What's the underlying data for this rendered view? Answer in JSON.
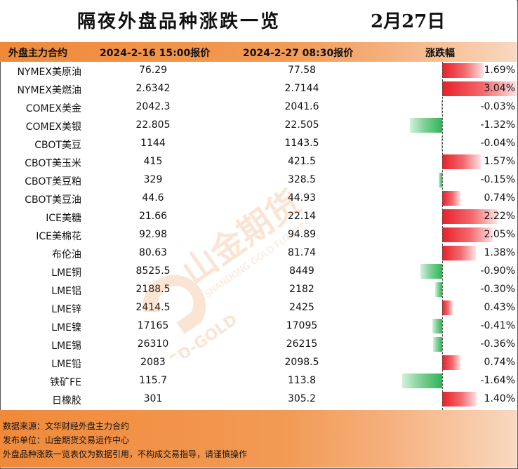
{
  "title": "隔夜外盘品种涨跌一览",
  "date": "2月27日",
  "headers": {
    "col1": "外盘主力合约",
    "col2": "2024-2-16 15:00报价",
    "col3": "2024-2-27 08:30报价",
    "col4": "涨跌幅"
  },
  "chart_data": {
    "type": "table",
    "columns": [
      "外盘主力合约",
      "2024-2-16 15:00报价",
      "2024-2-27 08:30报价",
      "涨跌幅"
    ],
    "rows": [
      {
        "name": "NYMEX美原油",
        "v1": "76.29",
        "v2": "77.58",
        "pct_text": "1.69%",
        "pct": 1.69
      },
      {
        "name": "NYMEX美燃油",
        "v1": "2.6342",
        "v2": "2.7144",
        "pct_text": "3.04%",
        "pct": 3.04
      },
      {
        "name": "COMEX美金",
        "v1": "2042.3",
        "v2": "2041.6",
        "pct_text": "-0.03%",
        "pct": -0.03
      },
      {
        "name": "COMEX美银",
        "v1": "22.805",
        "v2": "22.505",
        "pct_text": "-1.32%",
        "pct": -1.32
      },
      {
        "name": "CBOT美豆",
        "v1": "1144",
        "v2": "1143.5",
        "pct_text": "-0.04%",
        "pct": -0.04
      },
      {
        "name": "CBOT美玉米",
        "v1": "415",
        "v2": "421.5",
        "pct_text": "1.57%",
        "pct": 1.57
      },
      {
        "name": "CBOT美豆粕",
        "v1": "329",
        "v2": "328.5",
        "pct_text": "-0.15%",
        "pct": -0.15
      },
      {
        "name": "CBOT美豆油",
        "v1": "44.6",
        "v2": "44.93",
        "pct_text": "0.74%",
        "pct": 0.74
      },
      {
        "name": "ICE美糖",
        "v1": "21.66",
        "v2": "22.14",
        "pct_text": "2.22%",
        "pct": 2.22
      },
      {
        "name": "ICE美棉花",
        "v1": "92.98",
        "v2": "94.89",
        "pct_text": "2.05%",
        "pct": 2.05
      },
      {
        "name": "布伦油",
        "v1": "80.63",
        "v2": "81.74",
        "pct_text": "1.38%",
        "pct": 1.38
      },
      {
        "name": "LME铜",
        "v1": "8525.5",
        "v2": "8449",
        "pct_text": "-0.90%",
        "pct": -0.9
      },
      {
        "name": "LME铝",
        "v1": "2188.5",
        "v2": "2182",
        "pct_text": "-0.30%",
        "pct": -0.3
      },
      {
        "name": "LME锌",
        "v1": "2414.5",
        "v2": "2425",
        "pct_text": "0.43%",
        "pct": 0.43
      },
      {
        "name": "LME镍",
        "v1": "17165",
        "v2": "17095",
        "pct_text": "-0.41%",
        "pct": -0.41
      },
      {
        "name": "LME锡",
        "v1": "26310",
        "v2": "26215",
        "pct_text": "-0.36%",
        "pct": -0.36
      },
      {
        "name": "LME铅",
        "v1": "2083",
        "v2": "2098.5",
        "pct_text": "0.74%",
        "pct": 0.74
      },
      {
        "name": "铁矿FE",
        "v1": "115.7",
        "v2": "113.8",
        "pct_text": "-1.64%",
        "pct": -1.64
      },
      {
        "name": "日橡胶",
        "v1": "301",
        "v2": "305.2",
        "pct_text": "1.40%",
        "pct": 1.4
      }
    ],
    "colors": {
      "positive": "#e8202a",
      "negative": "#2fb457"
    }
  },
  "footer": {
    "line1": "数据来源：文华财经外盘主力合约",
    "line2": "发布单位：山金期货交易运作中心",
    "line3": "外盘品种涨跌一览表仅为数据引用，不构成交易指导，请谨慎操作"
  },
  "watermark": {
    "brand": "山金期货",
    "sub": "SHANDONG GOLD FUTURES",
    "logo": "SD-GOLD"
  }
}
